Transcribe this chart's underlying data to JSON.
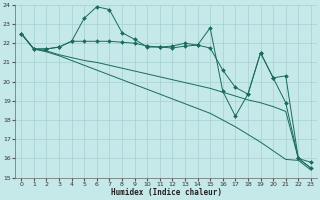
{
  "xlabel": "Humidex (Indice chaleur)",
  "xlim": [
    -0.5,
    23.5
  ],
  "ylim": [
    15,
    24
  ],
  "xticks": [
    0,
    1,
    2,
    3,
    4,
    5,
    6,
    7,
    8,
    9,
    10,
    11,
    12,
    13,
    14,
    15,
    16,
    17,
    18,
    19,
    20,
    21,
    22,
    23
  ],
  "yticks": [
    15,
    16,
    17,
    18,
    19,
    20,
    21,
    22,
    23,
    24
  ],
  "bg_color": "#c5e8e8",
  "grid_color": "#a8d0d0",
  "line_color": "#1a6b5a",
  "lines": [
    {
      "x": [
        0,
        1,
        2,
        3,
        4,
        5,
        6,
        7,
        8,
        9,
        10,
        11,
        12,
        13,
        14,
        15,
        16,
        17,
        18,
        19,
        20,
        21,
        22,
        23
      ],
      "y": [
        22.5,
        21.7,
        21.7,
        21.8,
        22.1,
        23.3,
        23.9,
        23.75,
        22.55,
        22.2,
        21.8,
        21.8,
        21.85,
        22.0,
        21.9,
        22.8,
        19.5,
        18.2,
        19.35,
        21.5,
        20.2,
        18.9,
        16.0,
        15.8
      ],
      "marker": true
    },
    {
      "x": [
        0,
        1,
        2,
        3,
        4,
        5,
        6,
        7,
        8,
        9,
        10,
        11,
        12,
        13,
        14,
        15,
        16,
        17,
        18,
        19,
        20,
        21,
        22,
        23
      ],
      "y": [
        22.5,
        21.7,
        21.7,
        21.8,
        22.1,
        22.1,
        22.1,
        22.1,
        22.05,
        22.0,
        21.85,
        21.8,
        21.75,
        21.85,
        21.9,
        21.75,
        20.6,
        19.7,
        19.35,
        21.5,
        20.2,
        20.3,
        16.0,
        15.5
      ],
      "marker": true
    },
    {
      "x": [
        0,
        1,
        2,
        3,
        4,
        5,
        6,
        7,
        8,
        9,
        10,
        11,
        12,
        13,
        14,
        15,
        16,
        17,
        18,
        19,
        20,
        21,
        22,
        23
      ],
      "y": [
        22.5,
        21.7,
        21.6,
        21.4,
        21.25,
        21.1,
        21.0,
        20.85,
        20.7,
        20.55,
        20.4,
        20.25,
        20.1,
        19.95,
        19.8,
        19.65,
        19.45,
        19.25,
        19.05,
        18.9,
        18.7,
        18.45,
        16.0,
        15.5
      ],
      "marker": false
    },
    {
      "x": [
        0,
        1,
        2,
        3,
        4,
        5,
        6,
        7,
        8,
        9,
        10,
        11,
        12,
        13,
        14,
        15,
        16,
        17,
        18,
        19,
        20,
        21,
        22,
        23
      ],
      "y": [
        22.5,
        21.7,
        21.55,
        21.35,
        21.1,
        20.85,
        20.6,
        20.35,
        20.1,
        19.85,
        19.6,
        19.35,
        19.1,
        18.85,
        18.6,
        18.35,
        18.0,
        17.65,
        17.25,
        16.85,
        16.4,
        15.95,
        15.9,
        15.4
      ],
      "marker": false
    }
  ]
}
